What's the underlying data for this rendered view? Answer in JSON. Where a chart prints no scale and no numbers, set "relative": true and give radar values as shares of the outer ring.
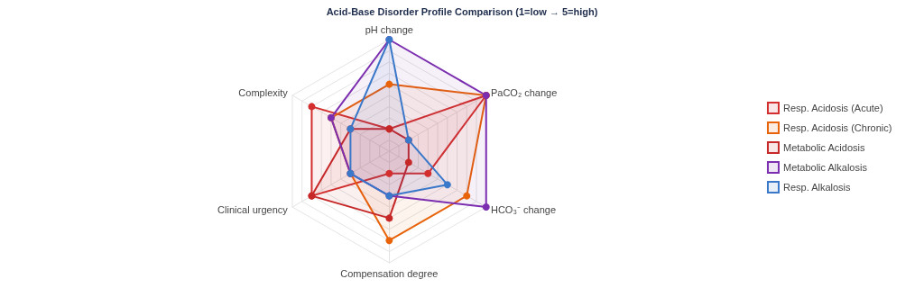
{
  "chart_data": {
    "type": "radar",
    "title": "Acid-Base Disorder Profile Comparison (1=low → 5=high)",
    "relative": true,
    "categories": [
      "pH change",
      "PaCO₂ change",
      "HCO₃⁻ change",
      "Compensation degree",
      "Clinical urgency",
      "Complexity"
    ],
    "legend": "right",
    "marker": "circle",
    "grid": true,
    "series": [
      {
        "name": "Resp. Acidosis (Acute)",
        "color": "#d32f2f",
        "values": [
          0.2,
          1,
          0.4,
          0.2,
          0.8,
          0.8
        ]
      },
      {
        "name": "Resp. Acidosis (Chronic)",
        "color": "#e8630a",
        "values": [
          0.6,
          1,
          0.8,
          0.8,
          0.4,
          0.6
        ]
      },
      {
        "name": "Metabolic Acidosis",
        "color": "#c62828",
        "values": [
          0.2,
          0.2,
          0.2,
          0.6,
          0.8,
          0.4
        ]
      },
      {
        "name": "Metabolic Alkalosis",
        "color": "#7b2fb0",
        "values": [
          1,
          1,
          1,
          0.4,
          0.4,
          0.6
        ]
      },
      {
        "name": "Resp. Alkalosis",
        "color": "#3a78c9",
        "values": [
          1,
          0.2,
          0.6,
          0.4,
          0.4,
          0.4
        ]
      }
    ]
  }
}
